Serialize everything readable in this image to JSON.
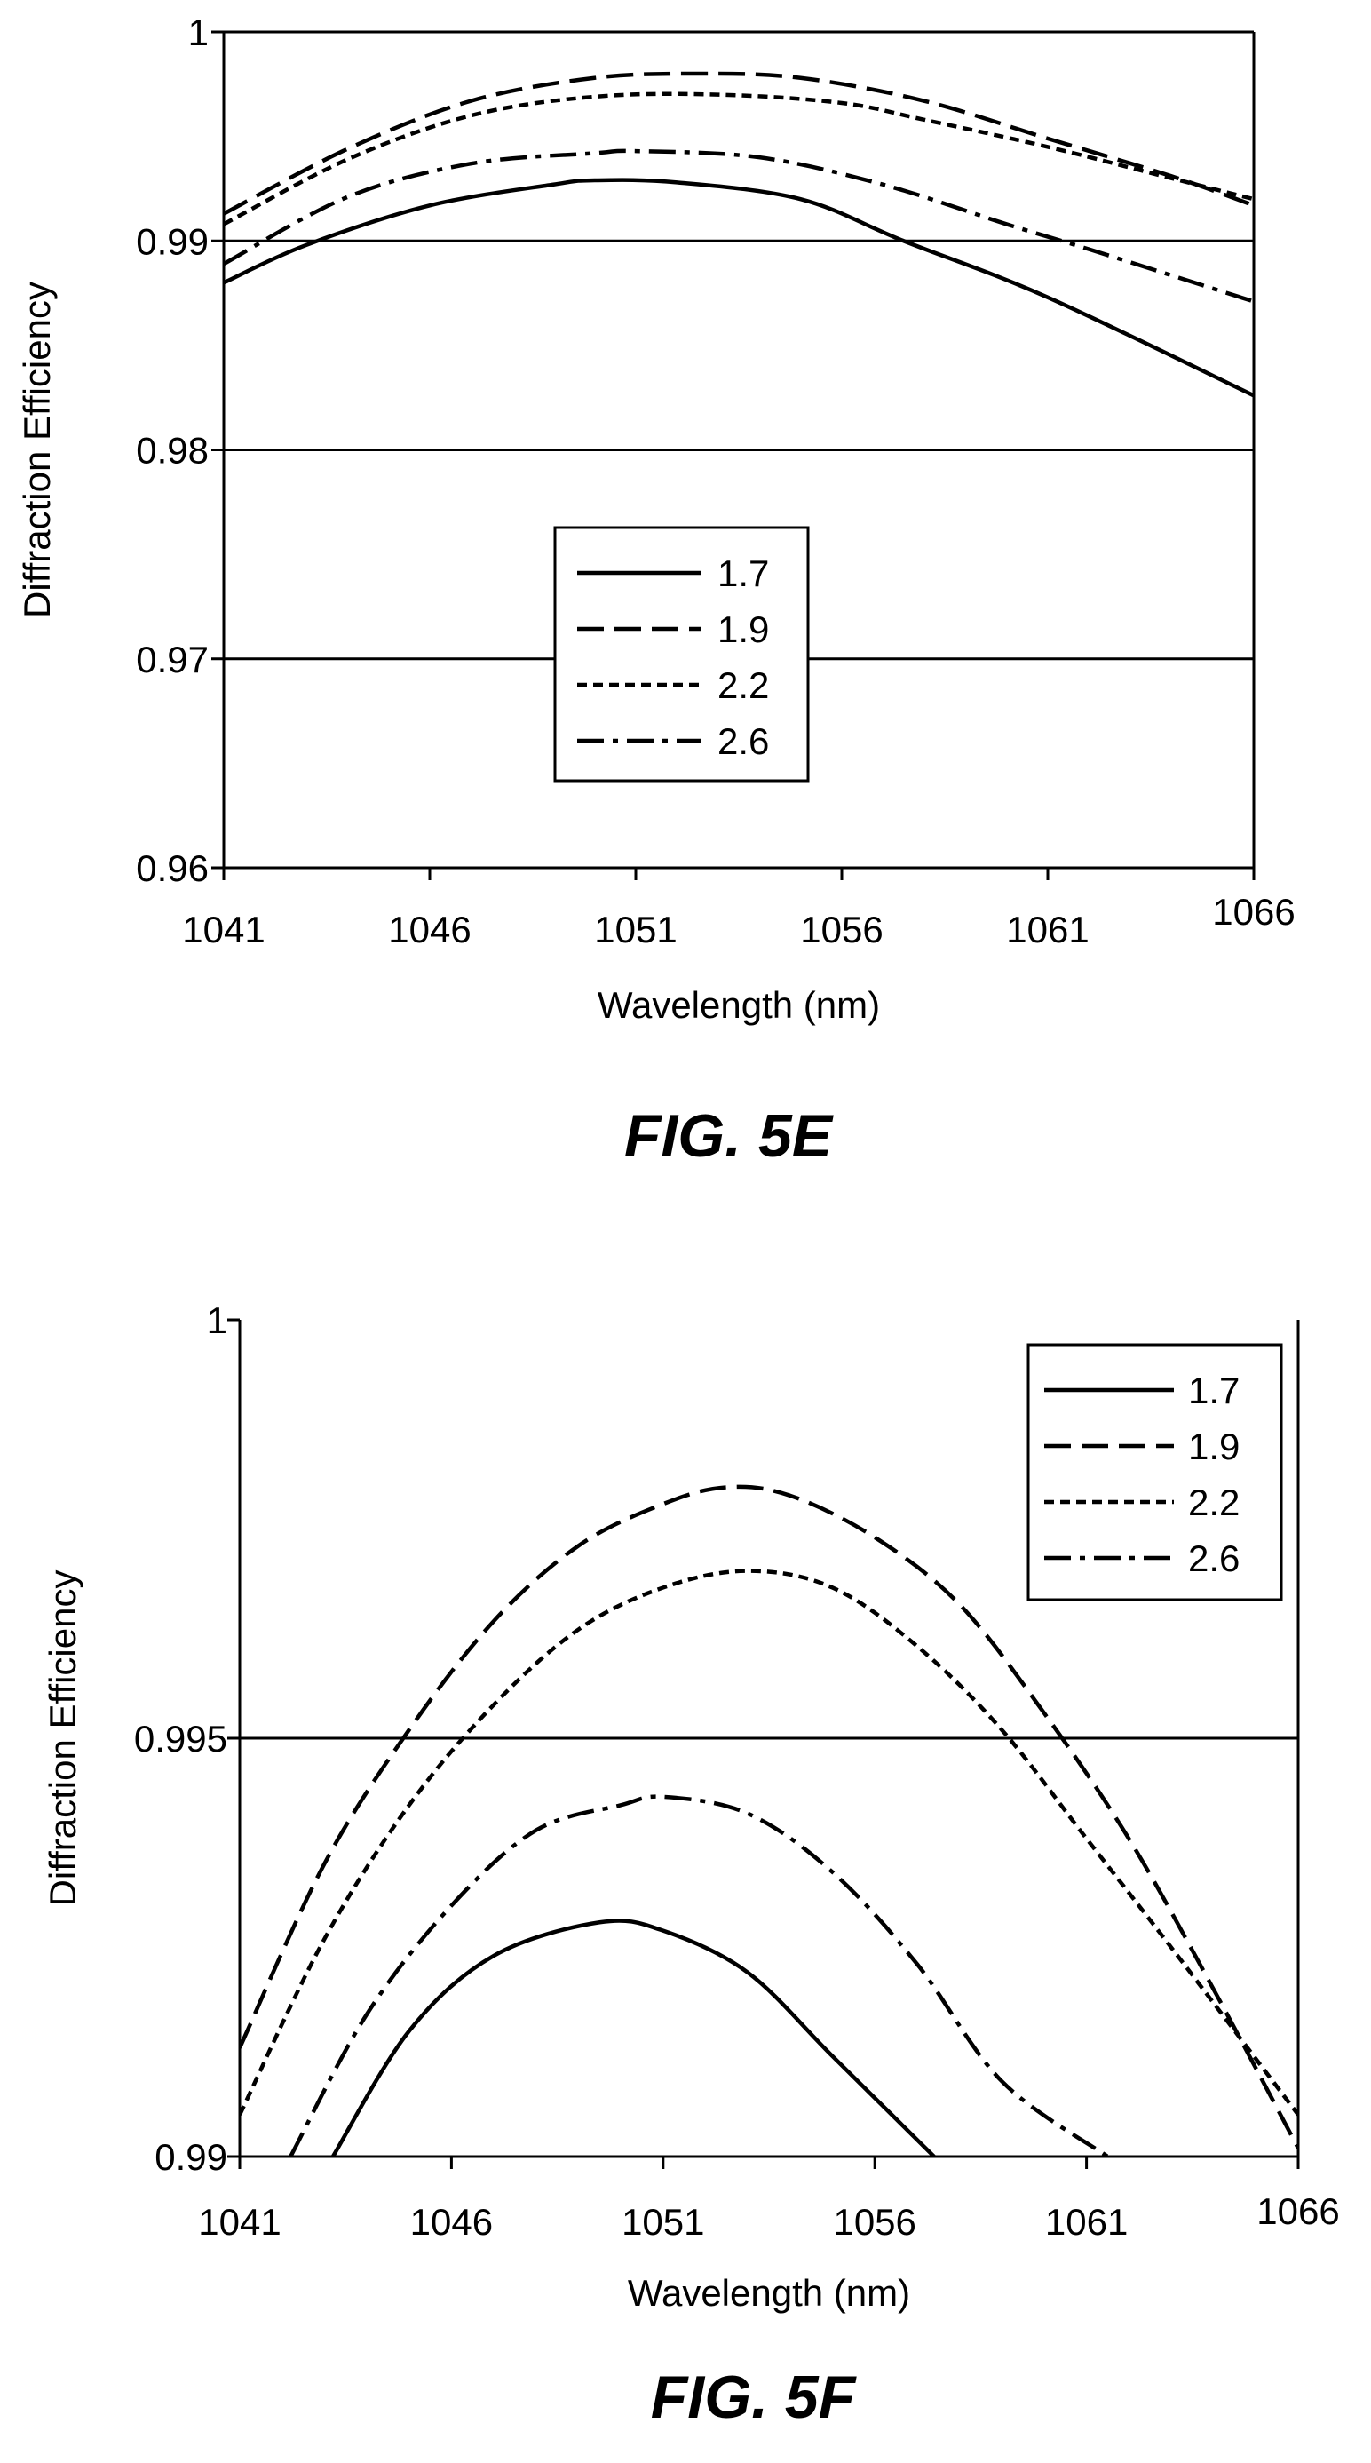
{
  "chart_data": [
    {
      "type": "line",
      "caption": "FIG. 5E",
      "xlabel": "Wavelength (nm)",
      "ylabel": "Diffraction Efficiency",
      "xlim": [
        1041,
        1066
      ],
      "ylim": [
        0.96,
        1
      ],
      "x_ticks": [
        1041,
        1046,
        1051,
        1056,
        1061,
        1066
      ],
      "y_ticks": [
        "0.96",
        "0.97",
        "0.98",
        "0.99",
        "1"
      ],
      "gridlines_y": [
        0.97,
        0.98,
        0.99
      ],
      "legend": {
        "position": "center",
        "entries": [
          "1.7",
          "1.9",
          "2.2",
          "2.6"
        ]
      },
      "series": [
        {
          "name": "1.7",
          "style": "solid",
          "x": [
            1041,
            1043,
            1046,
            1049,
            1050,
            1052,
            1055,
            1057.5,
            1061,
            1066
          ],
          "y": [
            0.988,
            0.9898,
            0.9917,
            0.9927,
            0.9929,
            0.9928,
            0.992,
            0.99,
            0.9873,
            0.9826
          ]
        },
        {
          "name": "1.9",
          "style": "dash",
          "x": [
            1041,
            1044,
            1047,
            1050,
            1052.5,
            1055,
            1058,
            1061,
            1064,
            1066
          ],
          "y": [
            0.9913,
            0.9944,
            0.9967,
            0.9978,
            0.998,
            0.9978,
            0.9967,
            0.9949,
            0.9931,
            0.9917
          ]
        },
        {
          "name": "2.2",
          "style": "dot",
          "x": [
            1041,
            1044,
            1047,
            1050,
            1053,
            1056,
            1058,
            1061,
            1064,
            1066
          ],
          "y": [
            0.9908,
            0.9939,
            0.996,
            0.9969,
            0.997,
            0.9966,
            0.9958,
            0.9945,
            0.993,
            0.992
          ]
        },
        {
          "name": "2.6",
          "style": "dashdot",
          "x": [
            1041,
            1044,
            1047,
            1050,
            1051,
            1054,
            1057,
            1060,
            1062,
            1066
          ],
          "y": [
            0.9889,
            0.9921,
            0.9937,
            0.9942,
            0.9943,
            0.994,
            0.9927,
            0.9908,
            0.9896,
            0.9871
          ]
        }
      ]
    },
    {
      "type": "line",
      "caption": "FIG. 5F",
      "xlabel": "Wavelength (nm)",
      "ylabel": "Diffraction Efficiency",
      "xlim": [
        1041,
        1066
      ],
      "ylim": [
        0.99,
        1
      ],
      "x_ticks": [
        1041,
        1046,
        1051,
        1056,
        1061,
        1066
      ],
      "y_ticks": [
        "0.99",
        "0.995",
        "1"
      ],
      "gridlines_y": [
        0.995
      ],
      "legend": {
        "position": "top-right",
        "entries": [
          "1.7",
          "1.9",
          "2.2",
          "2.6"
        ]
      },
      "series": [
        {
          "name": "1.7",
          "style": "solid",
          "x": [
            1043.2,
            1045,
            1047,
            1049.5,
            1051,
            1053,
            1055,
            1057.4
          ],
          "y": [
            0.99,
            0.9915,
            0.9924,
            0.9928,
            0.9927,
            0.9922,
            0.9912,
            0.99
          ]
        },
        {
          "name": "1.9",
          "style": "dash",
          "x": [
            1041,
            1043,
            1045,
            1047,
            1049,
            1051,
            1052.5,
            1054,
            1056,
            1058,
            1060,
            1062,
            1064,
            1066
          ],
          "y": [
            0.9913,
            0.9935,
            0.9951,
            0.9964,
            0.9973,
            0.9978,
            0.998,
            0.9979,
            0.9974,
            0.9966,
            0.9953,
            0.9938,
            0.992,
            0.9901
          ]
        },
        {
          "name": "2.2",
          "style": "dot",
          "x": [
            1041,
            1043,
            1045,
            1047,
            1049,
            1051,
            1053,
            1055,
            1057,
            1059,
            1061,
            1063,
            1066
          ],
          "y": [
            0.9905,
            0.9926,
            0.9942,
            0.9954,
            0.9963,
            0.9968,
            0.997,
            0.9968,
            0.9961,
            0.9951,
            0.9938,
            0.9925,
            0.9905
          ]
        },
        {
          "name": "2.6",
          "style": "dashdot",
          "x": [
            1042.2,
            1044,
            1046,
            1048,
            1050,
            1051,
            1053,
            1055,
            1057,
            1059,
            1061.5
          ],
          "y": [
            0.99,
            0.9917,
            0.993,
            0.9939,
            0.9942,
            0.9943,
            0.9941,
            0.9934,
            0.9923,
            0.9909,
            0.99
          ]
        }
      ]
    }
  ]
}
